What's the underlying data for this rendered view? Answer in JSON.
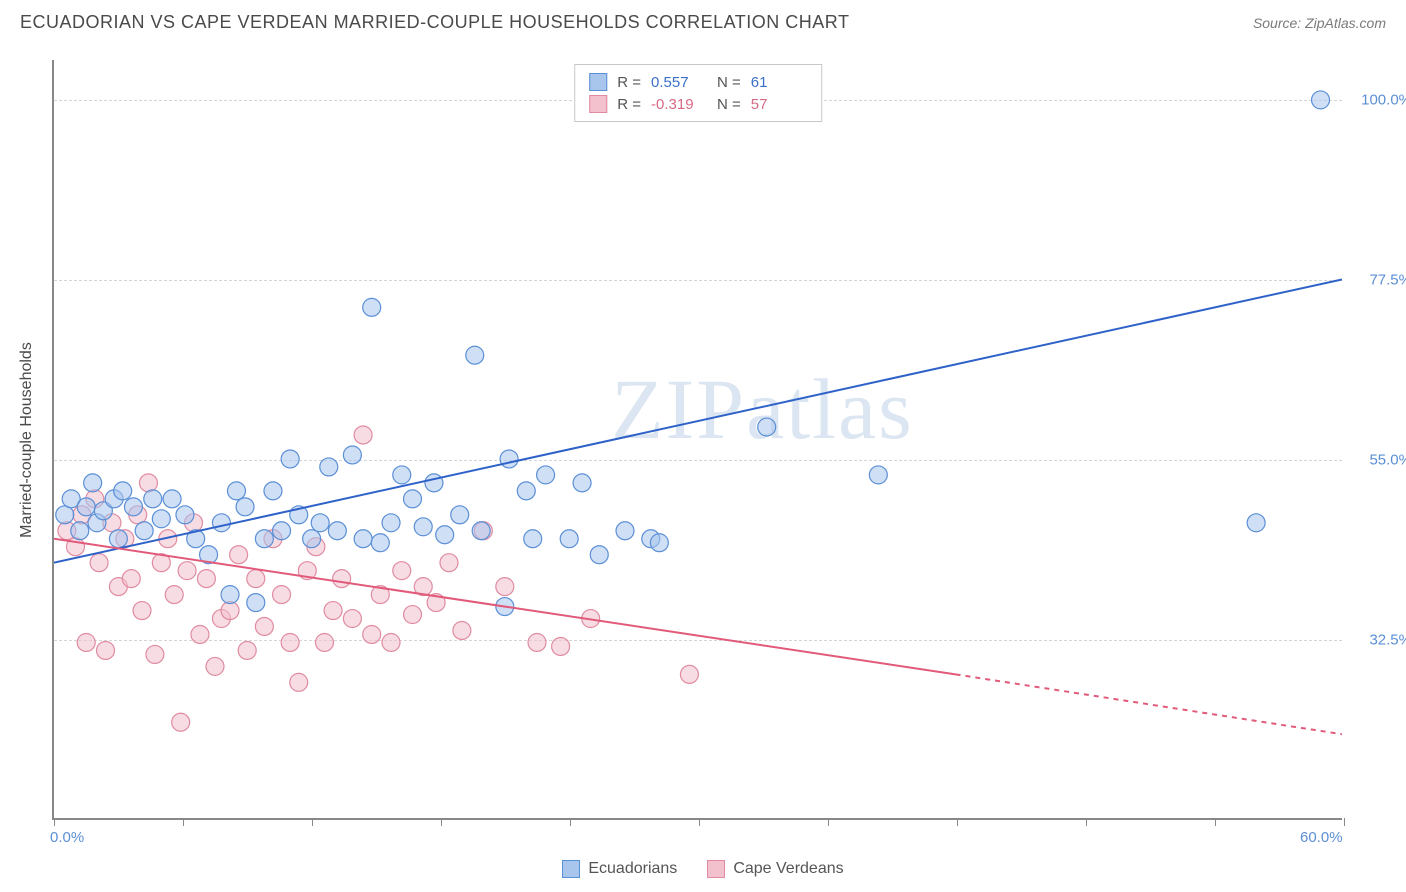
{
  "header": {
    "title": "ECUADORIAN VS CAPE VERDEAN MARRIED-COUPLE HOUSEHOLDS CORRELATION CHART",
    "source": "Source: ZipAtlas.com"
  },
  "watermark": "ZIPatlas",
  "chart": {
    "type": "scatter",
    "ylabel": "Married-couple Households",
    "xlim": [
      0,
      60
    ],
    "ylim": [
      10,
      105
    ],
    "x_ticks": [
      0,
      6,
      12,
      18,
      24,
      30,
      36,
      42,
      48,
      54,
      60
    ],
    "x_tick_labels": {
      "0": "0.0%",
      "60": "60.0%"
    },
    "y_gridlines": [
      32.5,
      55.0,
      77.5,
      100.0
    ],
    "y_tick_labels": [
      "32.5%",
      "55.0%",
      "77.5%",
      "100.0%"
    ],
    "background_color": "#ffffff",
    "grid_color": "#d5d5d5",
    "axis_label_color": "#5b8fd6",
    "marker_radius": 9,
    "marker_opacity": 0.55,
    "marker_stroke_width": 1.2,
    "line_width": 2
  },
  "top_legend": {
    "r_label": "R =",
    "n_label": "N =",
    "rows": [
      {
        "swatch_fill": "#a8c5ec",
        "swatch_stroke": "#5b8fd6",
        "r": "0.557",
        "n": "61",
        "val_color": "#3b6fc9"
      },
      {
        "swatch_fill": "#f3c0cd",
        "swatch_stroke": "#e08ba0",
        "r": "-0.319",
        "n": "57",
        "val_color": "#d86b84"
      }
    ]
  },
  "bottom_legend": {
    "items": [
      {
        "label": "Ecuadorians",
        "fill": "#a8c5ec",
        "stroke": "#5b8fd6"
      },
      {
        "label": "Cape Verdeans",
        "fill": "#f3c0cd",
        "stroke": "#e08ba0"
      }
    ]
  },
  "series": {
    "ecuadorians": {
      "color_fill": "#a8c5ec",
      "color_stroke": "#5b8fd6",
      "trend_color": "#2e62c9",
      "trend": {
        "x1": 0,
        "y1": 42,
        "x2": 60,
        "y2": 77.5
      },
      "points": [
        [
          0.5,
          48
        ],
        [
          0.8,
          50
        ],
        [
          1.2,
          46
        ],
        [
          1.5,
          49
        ],
        [
          1.8,
          52
        ],
        [
          2.0,
          47
        ],
        [
          2.3,
          48.5
        ],
        [
          2.8,
          50
        ],
        [
          3.0,
          45
        ],
        [
          3.2,
          51
        ],
        [
          3.7,
          49
        ],
        [
          4.2,
          46
        ],
        [
          4.6,
          50
        ],
        [
          5.0,
          47.5
        ],
        [
          5.5,
          50
        ],
        [
          6.1,
          48
        ],
        [
          6.6,
          45
        ],
        [
          7.2,
          43
        ],
        [
          7.8,
          47
        ],
        [
          8.2,
          38
        ],
        [
          8.5,
          51
        ],
        [
          8.9,
          49
        ],
        [
          9.4,
          37
        ],
        [
          9.8,
          45
        ],
        [
          10.2,
          51
        ],
        [
          10.6,
          46
        ],
        [
          11.0,
          55
        ],
        [
          11.4,
          48
        ],
        [
          12.0,
          45
        ],
        [
          12.4,
          47
        ],
        [
          12.8,
          54
        ],
        [
          13.2,
          46
        ],
        [
          13.9,
          55.5
        ],
        [
          14.4,
          45
        ],
        [
          14.8,
          74
        ],
        [
          15.2,
          44.5
        ],
        [
          15.7,
          47
        ],
        [
          16.2,
          53
        ],
        [
          16.7,
          50
        ],
        [
          17.2,
          46.5
        ],
        [
          17.7,
          52
        ],
        [
          18.2,
          45.5
        ],
        [
          18.9,
          48
        ],
        [
          19.6,
          68
        ],
        [
          19.9,
          46
        ],
        [
          21.0,
          36.5
        ],
        [
          21.2,
          55
        ],
        [
          22.0,
          51
        ],
        [
          22.3,
          45
        ],
        [
          22.9,
          53
        ],
        [
          24.0,
          45
        ],
        [
          24.6,
          52
        ],
        [
          25.4,
          43
        ],
        [
          26.6,
          46
        ],
        [
          27.8,
          45
        ],
        [
          28.2,
          44.5
        ],
        [
          33.2,
          59
        ],
        [
          38.4,
          53
        ],
        [
          56.0,
          47
        ],
        [
          59.0,
          100
        ]
      ]
    },
    "cape_verdeans": {
      "color_fill": "#f3c0cd",
      "color_stroke": "#e08ba0",
      "trend_color": "#e25a7a",
      "trend_solid": {
        "x1": 0,
        "y1": 45,
        "x2": 42,
        "y2": 28
      },
      "trend_dashed": {
        "x1": 42,
        "y2": 28,
        "x2": 60,
        "y3": 20.5
      },
      "points": [
        [
          0.6,
          46
        ],
        [
          1.0,
          44
        ],
        [
          1.3,
          48
        ],
        [
          1.5,
          32
        ],
        [
          1.9,
          50
        ],
        [
          2.1,
          42
        ],
        [
          2.4,
          31
        ],
        [
          2.7,
          47
        ],
        [
          3.0,
          39
        ],
        [
          3.3,
          45
        ],
        [
          3.6,
          40
        ],
        [
          3.9,
          48
        ],
        [
          4.1,
          36
        ],
        [
          4.4,
          52
        ],
        [
          4.7,
          30.5
        ],
        [
          5.0,
          42
        ],
        [
          5.3,
          45
        ],
        [
          5.6,
          38
        ],
        [
          5.9,
          22
        ],
        [
          6.2,
          41
        ],
        [
          6.5,
          47
        ],
        [
          6.8,
          33
        ],
        [
          7.1,
          40
        ],
        [
          7.5,
          29
        ],
        [
          7.8,
          35
        ],
        [
          8.2,
          36
        ],
        [
          8.6,
          43
        ],
        [
          9.0,
          31
        ],
        [
          9.4,
          40
        ],
        [
          9.8,
          34
        ],
        [
          10.2,
          45
        ],
        [
          10.6,
          38
        ],
        [
          11.0,
          32
        ],
        [
          11.4,
          27
        ],
        [
          11.8,
          41
        ],
        [
          12.2,
          44
        ],
        [
          12.6,
          32
        ],
        [
          13.0,
          36
        ],
        [
          13.4,
          40
        ],
        [
          13.9,
          35
        ],
        [
          14.4,
          58
        ],
        [
          14.8,
          33
        ],
        [
          15.2,
          38
        ],
        [
          15.7,
          32
        ],
        [
          16.2,
          41
        ],
        [
          16.7,
          35.5
        ],
        [
          17.2,
          39
        ],
        [
          17.8,
          37
        ],
        [
          18.4,
          42
        ],
        [
          19.0,
          33.5
        ],
        [
          20.0,
          46
        ],
        [
          21.0,
          39
        ],
        [
          22.5,
          32
        ],
        [
          23.6,
          31.5
        ],
        [
          25.0,
          35
        ],
        [
          29.6,
          28
        ]
      ]
    }
  }
}
